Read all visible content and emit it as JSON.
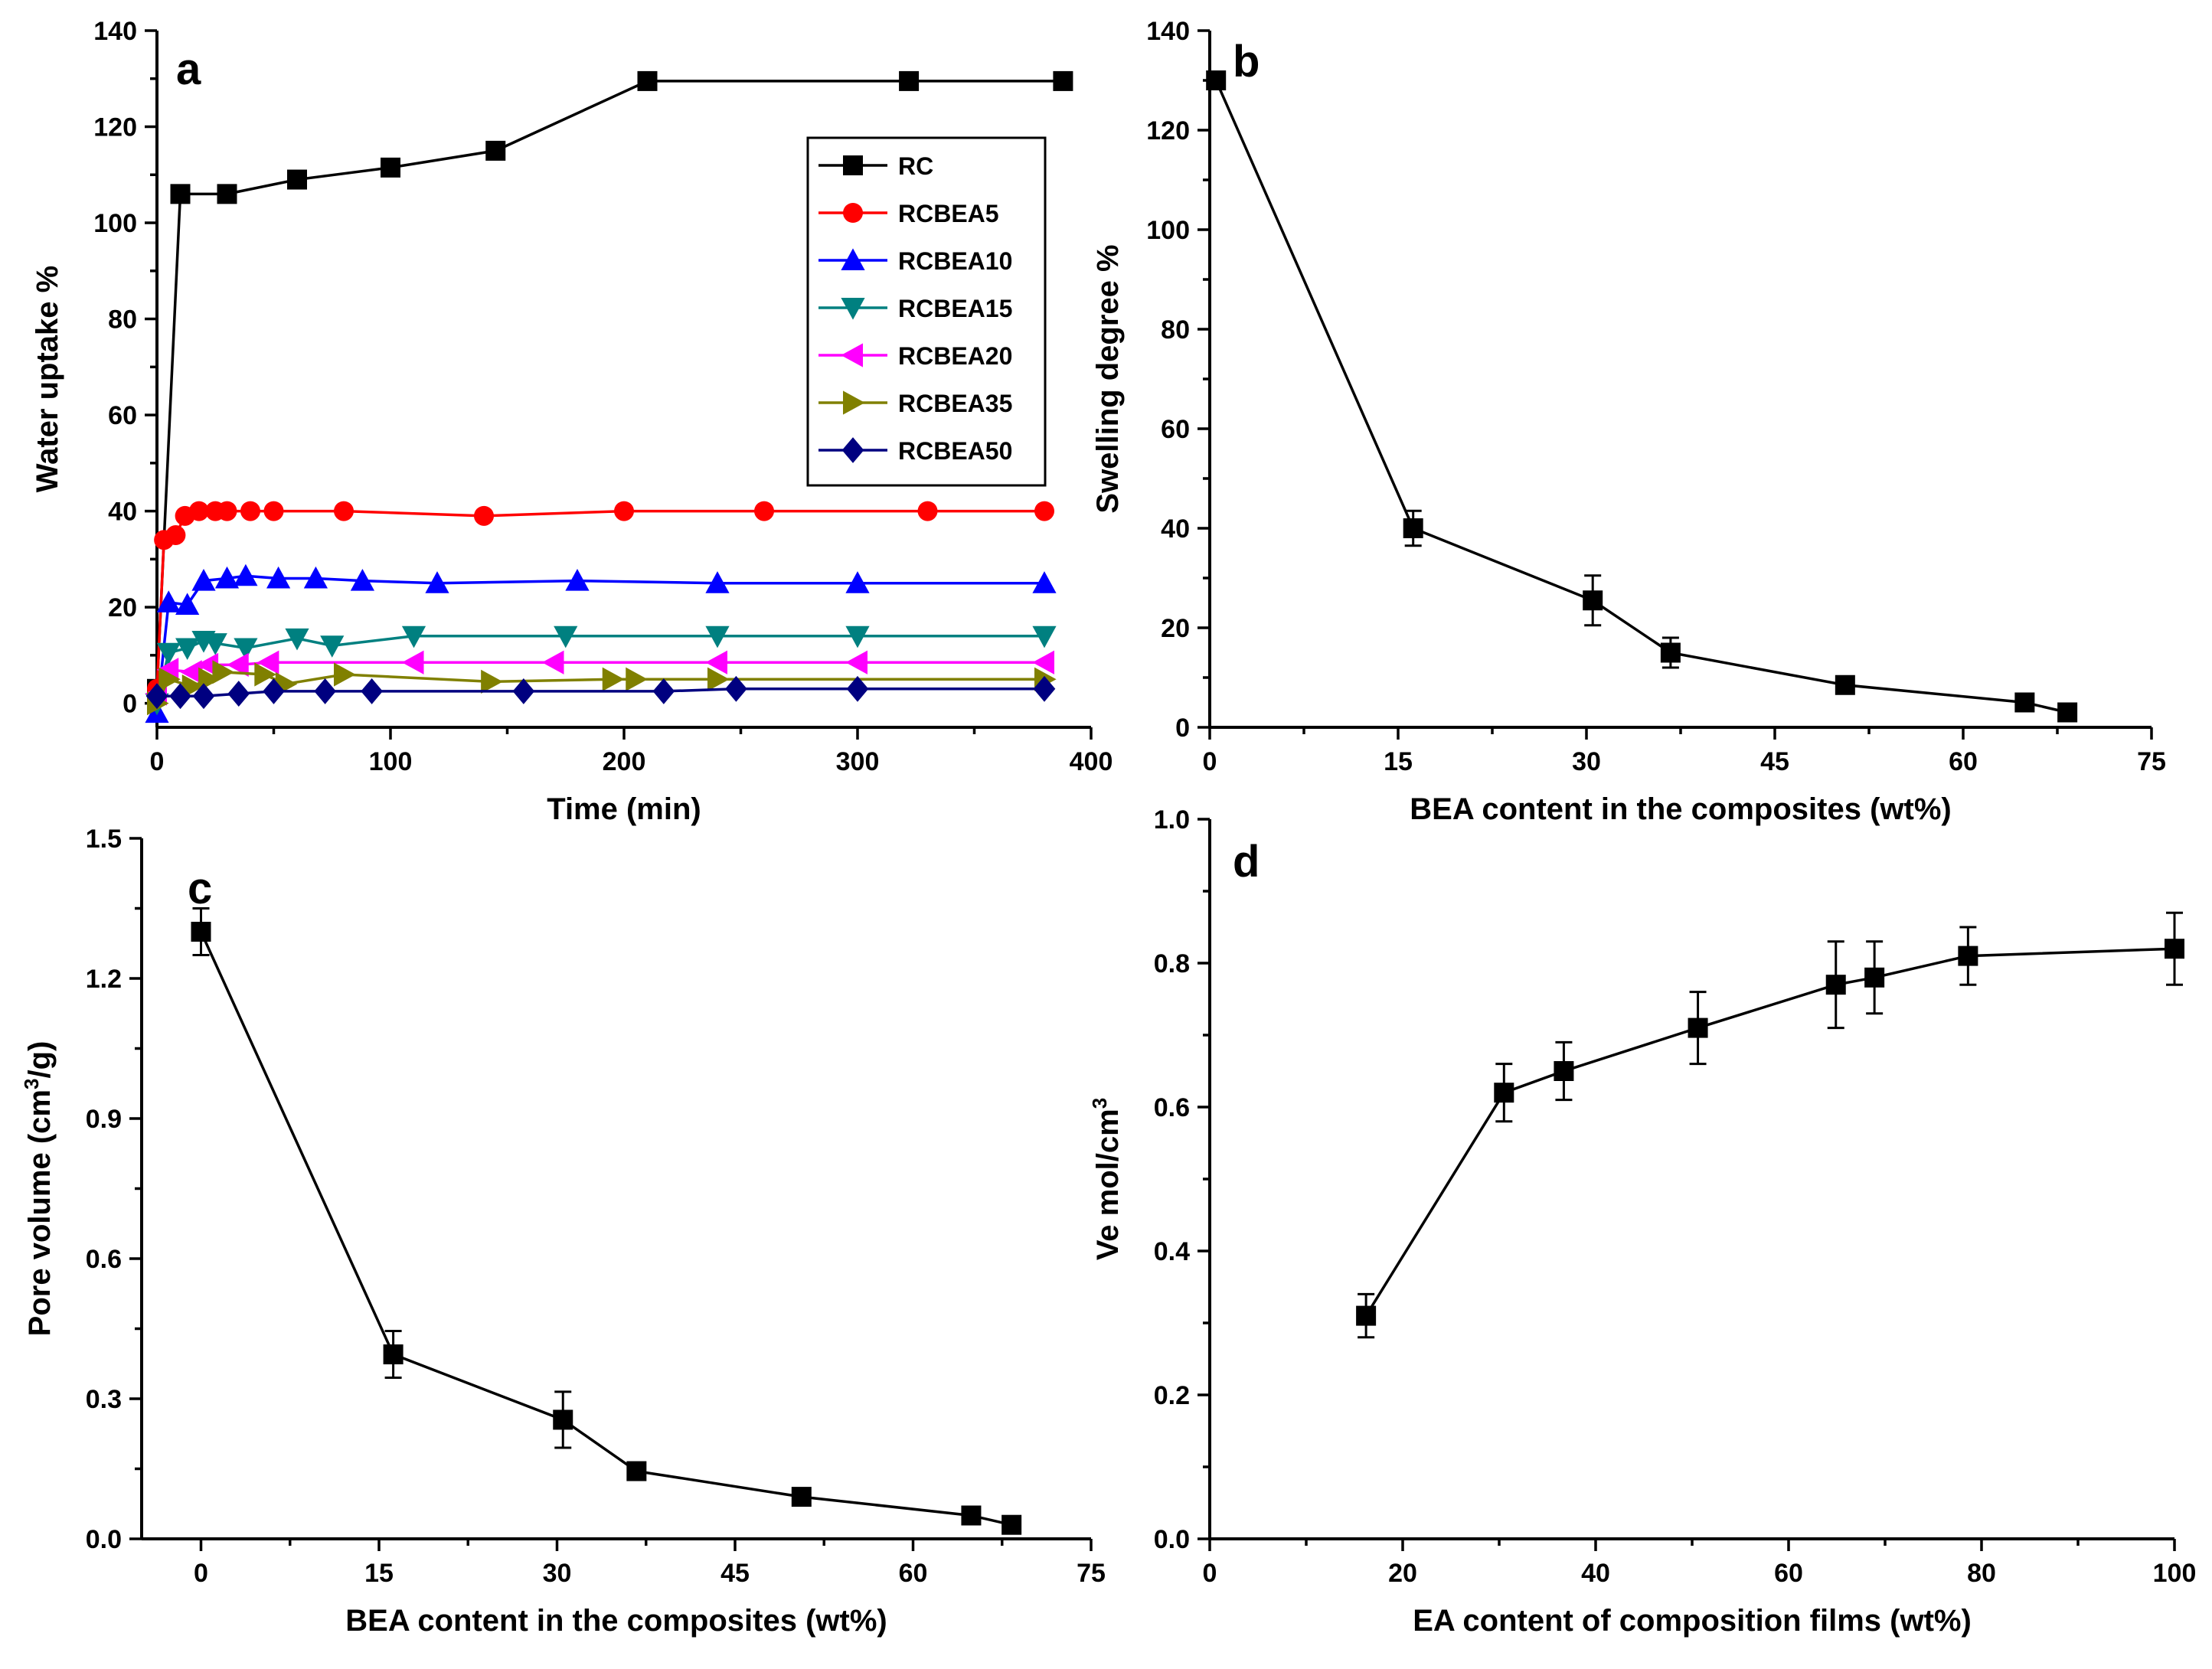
{
  "chart_data": [
    {
      "panel": "a",
      "type": "line",
      "title": "",
      "xlabel": "Time (min)",
      "ylabel": "Water uptake %",
      "xlim": [
        0,
        400
      ],
      "ylim": [
        -5,
        140
      ],
      "xticks": [
        0,
        100,
        200,
        300,
        400
      ],
      "yticks": [
        0,
        20,
        40,
        60,
        80,
        100,
        120,
        140
      ],
      "legend_position": "top-right",
      "series": [
        {
          "name": "RC",
          "color": "#000000",
          "marker": "square",
          "x": [
            0,
            10,
            30,
            60,
            100,
            145,
            210,
            322,
            388
          ],
          "y": [
            3,
            106,
            106,
            109,
            111.5,
            115,
            129.5,
            129.5,
            129.5
          ]
        },
        {
          "name": "RCBEA5",
          "color": "#ff0000",
          "marker": "circle",
          "x": [
            0,
            3,
            8,
            12,
            18,
            25,
            30,
            40,
            50,
            80,
            140,
            200,
            260,
            330,
            380
          ],
          "y": [
            3,
            34,
            35,
            39,
            40,
            40,
            40,
            40,
            40,
            40,
            39,
            40,
            40,
            40,
            40
          ]
        },
        {
          "name": "RCBEA10",
          "color": "#0000ff",
          "marker": "triangle-up",
          "x": [
            0,
            5,
            13,
            20,
            30,
            38,
            52,
            68,
            88,
            120,
            180,
            240,
            300,
            380
          ],
          "y": [
            -2,
            21,
            20.5,
            25.5,
            26,
            26.5,
            26,
            26,
            25.5,
            25,
            25.5,
            25,
            25,
            25
          ]
        },
        {
          "name": "RCBEA15",
          "color": "#008080",
          "marker": "triangle-down",
          "x": [
            0,
            5,
            13,
            20,
            25,
            38,
            60,
            75,
            110,
            175,
            240,
            300,
            380
          ],
          "y": [
            0,
            10.5,
            11.5,
            13,
            12.5,
            11.5,
            13.5,
            12,
            14,
            14,
            14,
            14,
            14
          ]
        },
        {
          "name": "RCBEA20",
          "color": "#ff00ff",
          "marker": "triangle-left",
          "x": [
            0,
            5,
            15,
            22,
            35,
            48,
            110,
            170,
            240,
            300,
            380
          ],
          "y": [
            2,
            7,
            6.5,
            8,
            8,
            8.5,
            8.5,
            8.5,
            8.5,
            8.5,
            8.5
          ]
        },
        {
          "name": "RCBEA35",
          "color": "#808000",
          "marker": "triangle-right",
          "x": [
            0,
            5,
            15,
            22,
            28,
            46,
            55,
            80,
            143,
            195,
            205,
            240,
            380
          ],
          "y": [
            0,
            5,
            3.5,
            5,
            6.5,
            6,
            4,
            6,
            4.5,
            5,
            5,
            5,
            5
          ]
        },
        {
          "name": "RCBEA50",
          "color": "#000080",
          "marker": "diamond",
          "x": [
            0,
            10,
            20,
            35,
            50,
            72,
            92,
            157,
            217,
            248,
            300,
            380
          ],
          "y": [
            1.5,
            1.5,
            1.5,
            2,
            2.5,
            2.5,
            2.5,
            2.5,
            2.5,
            3,
            3,
            3
          ]
        }
      ]
    },
    {
      "panel": "b",
      "type": "line",
      "title": "",
      "xlabel": "BEA content in the composites (wt%)",
      "ylabel": "Swelling degree %",
      "xlim": [
        0,
        75
      ],
      "ylim": [
        0,
        140
      ],
      "xticks": [
        0,
        15,
        30,
        45,
        60,
        75
      ],
      "yticks": [
        0,
        20,
        40,
        60,
        80,
        100,
        120,
        140
      ],
      "series": [
        {
          "name": "Swelling degree",
          "color": "#000000",
          "marker": "square",
          "x": [
            0.5,
            16.2,
            30.5,
            36.7,
            50.6,
            64.9,
            68.3
          ],
          "y": [
            130,
            40,
            25.5,
            15,
            8.5,
            5,
            3
          ],
          "error": [
            0,
            3.5,
            5,
            3,
            0,
            0,
            0
          ]
        }
      ]
    },
    {
      "panel": "c",
      "type": "line",
      "title": "",
      "xlabel": "BEA content in the composites (wt%)",
      "ylabel": "Pore volume (cm3/g)",
      "ylabel_parts": {
        "prefix": "Pore volume (cm",
        "sup": "3",
        "suffix": "/g)"
      },
      "xlim": [
        -5,
        75
      ],
      "ylim": [
        0,
        1.5
      ],
      "xticks": [
        0,
        15,
        30,
        45,
        60,
        75
      ],
      "yticks": [
        0.0,
        0.3,
        0.6,
        0.9,
        1.2,
        1.5
      ],
      "tick_labels_y": [
        "0.0",
        "0.3",
        "0.6",
        "0.9",
        "1.2",
        "1.5"
      ],
      "series": [
        {
          "name": "Pore volume",
          "color": "#000000",
          "marker": "square",
          "x": [
            0,
            16.2,
            30.5,
            36.7,
            50.6,
            64.9,
            68.3
          ],
          "y": [
            1.3,
            0.395,
            0.255,
            0.145,
            0.09,
            0.05,
            0.03
          ],
          "error": [
            0.05,
            0.05,
            0.06,
            0,
            0,
            0,
            0
          ]
        }
      ]
    },
    {
      "panel": "d",
      "type": "line",
      "title": "",
      "xlabel": "EA content of composition films (wt%)",
      "ylabel": "Ve mol/cm3",
      "ylabel_parts": {
        "prefix": "Ve mol/cm",
        "sup": "3",
        "suffix": ""
      },
      "xlim": [
        0,
        100
      ],
      "ylim": [
        0,
        1.0
      ],
      "xticks": [
        0,
        20,
        40,
        60,
        80,
        100
      ],
      "yticks": [
        0.0,
        0.2,
        0.4,
        0.6,
        0.8,
        1.0
      ],
      "tick_labels_y": [
        "0.0",
        "0.2",
        "0.4",
        "0.6",
        "0.8",
        "1.0"
      ],
      "series": [
        {
          "name": "Ve",
          "color": "#000000",
          "marker": "square",
          "x": [
            16.2,
            30.5,
            36.7,
            50.6,
            64.9,
            68.9,
            78.6,
            100
          ],
          "y": [
            0.31,
            0.62,
            0.65,
            0.71,
            0.77,
            0.78,
            0.81,
            0.82
          ],
          "error": [
            0.03,
            0.04,
            0.04,
            0.05,
            0.06,
            0.05,
            0.04,
            0.05
          ]
        }
      ]
    }
  ]
}
